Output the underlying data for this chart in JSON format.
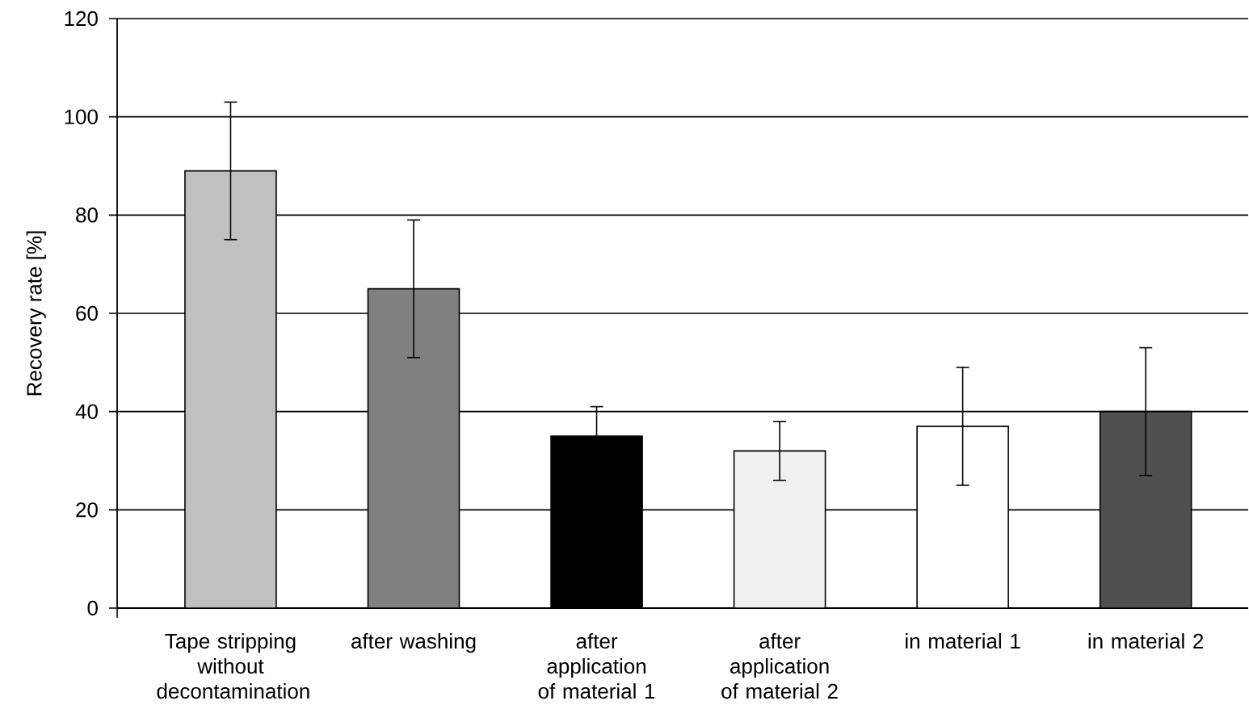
{
  "chart_data": {
    "type": "bar",
    "ylabel": "Recovery rate [%]",
    "categories": [
      "Tape stripping without decontamination",
      "after washing",
      "after application of material 1",
      "after application of material 2",
      "in material 1",
      "in material 2"
    ],
    "values": [
      89,
      65,
      35,
      32,
      37,
      40
    ],
    "errors": [
      14,
      14,
      6,
      6,
      12,
      13
    ],
    "colors": [
      "#c0c0c0",
      "#808080",
      "#000000",
      "#f0f0f0",
      "#ffffff",
      "#505050"
    ],
    "ylim": [
      0,
      120
    ],
    "yticks": [
      0,
      20,
      40,
      60,
      80,
      100,
      120
    ],
    "grid": "y"
  }
}
